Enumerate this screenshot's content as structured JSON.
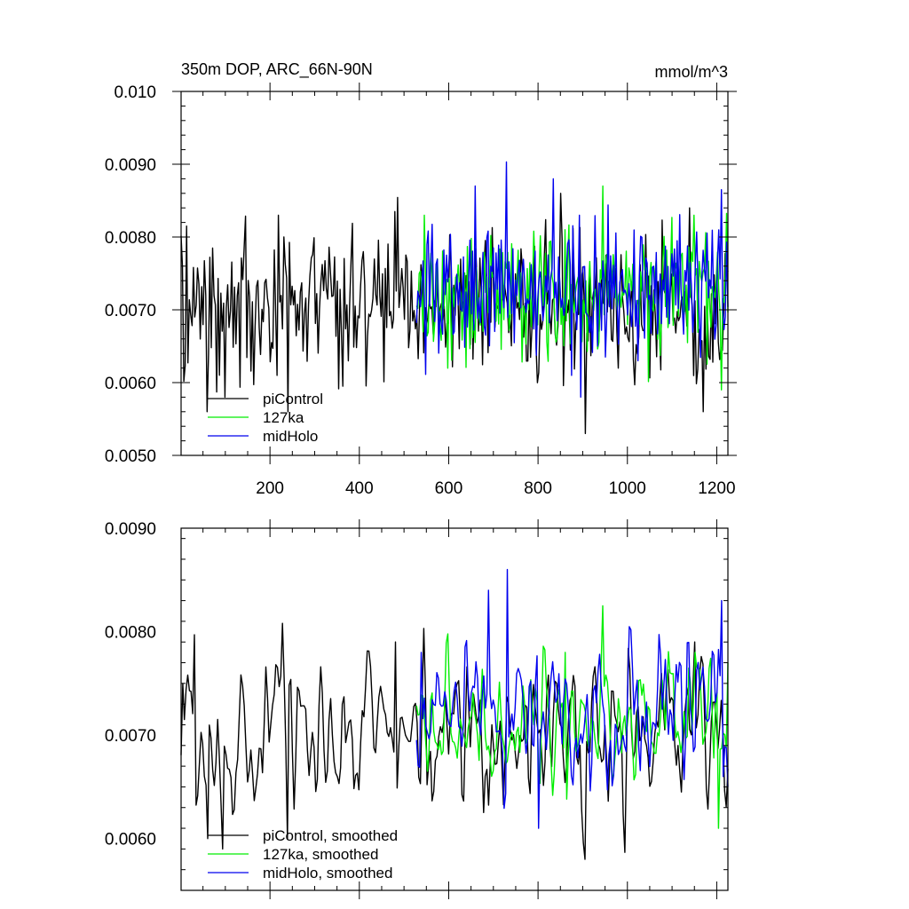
{
  "figure": {
    "title_left": "350m DOP, ARC_66N-90N",
    "title_right": "mmol/m^3"
  },
  "colors": {
    "piControl": "#000000",
    "127ka": "#00ee00",
    "midHolo": "#0000ee"
  },
  "chart_data": [
    {
      "type": "line",
      "title": "350m DOP, ARC_66N-90N",
      "units": "mmol/m^3",
      "xlabel": "",
      "ylabel": "",
      "xlim": [
        1,
        1225
      ],
      "ylim": [
        0.005,
        0.01
      ],
      "x_ticks": [
        200,
        400,
        600,
        800,
        1000,
        1200
      ],
      "x_tick_labels": [
        "200",
        "400",
        "600",
        "800",
        "1000",
        "1200"
      ],
      "y_ticks": [
        0.005,
        0.006,
        0.007,
        0.008,
        0.009,
        0.01
      ],
      "y_tick_labels": [
        "0.0050",
        "0.0060",
        "0.0070",
        "0.0080",
        "0.0090",
        "0.010"
      ],
      "legend_position": "bottom-left",
      "series": [
        {
          "name": "piControl",
          "color": "#000000",
          "x_start": 1,
          "x_end": 1225,
          "n": 400,
          "mean": 0.00705,
          "amplitude": 0.00052,
          "anchors": [
            [
              5,
              0.0076
            ],
            [
              12,
              0.00815
            ],
            [
              60,
              0.0056
            ],
            [
              100,
              0.0058
            ],
            [
              220,
              0.0083
            ],
            [
              240,
              0.0056
            ],
            [
              480,
              0.00835
            ],
            [
              850,
              0.0086
            ],
            [
              905,
              0.0053
            ],
            [
              1140,
              0.0084
            ],
            [
              1170,
              0.0056
            ]
          ]
        },
        {
          "name": "127ka",
          "color": "#00ee00",
          "x_start": 528,
          "x_end": 1225,
          "n": 240,
          "mean": 0.00722,
          "amplitude": 0.00045,
          "anchors": [
            [
              545,
              0.0083
            ],
            [
              860,
              0.0081
            ],
            [
              945,
              0.0087
            ],
            [
              1150,
              0.0083
            ],
            [
              1210,
              0.0059
            ]
          ]
        },
        {
          "name": "midHolo",
          "color": "#0000ee",
          "x_start": 528,
          "x_end": 1225,
          "n": 240,
          "mean": 0.00725,
          "amplitude": 0.00048,
          "anchors": [
            [
              660,
              0.0087
            ],
            [
              730,
              0.00903
            ],
            [
              835,
              0.0088
            ],
            [
              895,
              0.0058
            ],
            [
              1210,
              0.00865
            ]
          ]
        }
      ]
    },
    {
      "type": "line",
      "title": "",
      "xlabel": "",
      "ylabel": "",
      "xlim": [
        1,
        1225
      ],
      "ylim": [
        0.0055,
        0.009
      ],
      "x_ticks": [
        200,
        400,
        600,
        800,
        1000,
        1200
      ],
      "y_ticks": [
        0.006,
        0.007,
        0.008,
        0.009
      ],
      "y_tick_labels": [
        "0.0060",
        "0.0070",
        "0.0080",
        "0.0090"
      ],
      "legend_position": "bottom-left",
      "series": [
        {
          "name": "piControl, smoothed",
          "color": "#000000",
          "x_start": 1,
          "x_end": 1225,
          "n": 330,
          "mean": 0.00702,
          "amplitude": 0.00038,
          "anchors": [
            [
              5,
              0.0075
            ],
            [
              30,
              0.00797
            ],
            [
              60,
              0.006
            ],
            [
              95,
              0.0059
            ],
            [
              228,
              0.00808
            ],
            [
              240,
              0.006
            ],
            [
              480,
              0.0079
            ],
            [
              905,
              0.0058
            ],
            [
              1150,
              0.0079
            ]
          ]
        },
        {
          "name": "127ka, smoothed",
          "color": "#00ee00",
          "x_start": 528,
          "x_end": 1225,
          "n": 200,
          "mean": 0.00716,
          "amplitude": 0.00036,
          "anchors": [
            [
              860,
              0.0078
            ],
            [
              945,
              0.00825
            ],
            [
              1150,
              0.0078
            ],
            [
              1205,
              0.0061
            ],
            [
              1225,
              0.0077
            ]
          ]
        },
        {
          "name": "midHolo, smoothed",
          "color": "#0000ee",
          "x_start": 528,
          "x_end": 1225,
          "n": 200,
          "mean": 0.00725,
          "amplitude": 0.00038,
          "anchors": [
            [
              540,
              0.0078
            ],
            [
              690,
              0.0084
            ],
            [
              730,
              0.0086
            ],
            [
              800,
              0.0061
            ],
            [
              1210,
              0.0083
            ]
          ]
        }
      ]
    }
  ],
  "legends": [
    [
      "piControl",
      "127ka",
      "midHolo"
    ],
    [
      "piControl, smoothed",
      "127ka, smoothed",
      "midHolo, smoothed"
    ]
  ]
}
